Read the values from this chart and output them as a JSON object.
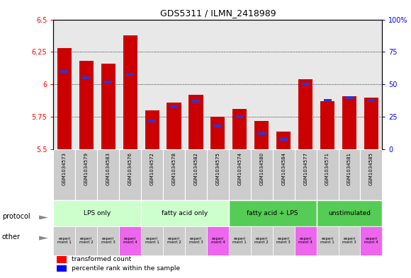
{
  "title": "GDS5311 / ILMN_2418989",
  "samples": [
    "GSM1034573",
    "GSM1034579",
    "GSM1034583",
    "GSM1034576",
    "GSM1034572",
    "GSM1034578",
    "GSM1034582",
    "GSM1034575",
    "GSM1034574",
    "GSM1034580",
    "GSM1034584",
    "GSM1034577",
    "GSM1034571",
    "GSM1034581",
    "GSM1034585"
  ],
  "red_values": [
    6.28,
    6.18,
    6.16,
    6.38,
    5.8,
    5.86,
    5.92,
    5.75,
    5.81,
    5.72,
    5.64,
    6.04,
    5.87,
    5.91,
    5.9
  ],
  "blue_values": [
    60,
    55,
    52,
    58,
    22,
    33,
    37,
    18,
    25,
    12,
    8,
    50,
    38,
    40,
    38
  ],
  "y_min": 5.5,
  "y_max": 6.5,
  "yticks_left": [
    5.5,
    5.75,
    6.0,
    6.25,
    6.5
  ],
  "ytick_labels_left": [
    "5.5",
    "5.75",
    "6",
    "6.25",
    "6.5"
  ],
  "yticks_right": [
    0,
    25,
    50,
    75,
    100
  ],
  "ytick_labels_right": [
    "0",
    "25",
    "50",
    "75",
    "100%"
  ],
  "groups": [
    {
      "label": "LPS only",
      "count": 4,
      "color": "#ccffcc"
    },
    {
      "label": "fatty acid only",
      "count": 4,
      "color": "#ccffcc"
    },
    {
      "label": "fatty acid + LPS",
      "count": 4,
      "color": "#55cc55"
    },
    {
      "label": "unstimulated",
      "count": 3,
      "color": "#55cc55"
    }
  ],
  "other_labels": [
    "experi\nment 1",
    "experi\nment 2",
    "experi\nment 3",
    "experi\nment 4",
    "experi\nment 1",
    "experi\nment 2",
    "experi\nment 3",
    "experi\nment 4",
    "experi\nment 1",
    "experi\nment 2",
    "experi\nment 3",
    "experi\nment 4",
    "experi\nment 1",
    "experi\nment 3",
    "experi\nment 4"
  ],
  "other_colors": [
    "#cccccc",
    "#cccccc",
    "#cccccc",
    "#ee66ee",
    "#cccccc",
    "#cccccc",
    "#cccccc",
    "#ee66ee",
    "#cccccc",
    "#cccccc",
    "#cccccc",
    "#ee66ee",
    "#cccccc",
    "#cccccc",
    "#ee66ee"
  ],
  "bar_color_red": "#cc0000",
  "bar_color_blue": "#3333cc",
  "bar_width": 0.65,
  "chart_bg": "#e8e8e8",
  "sample_box_bg": "#cccccc"
}
